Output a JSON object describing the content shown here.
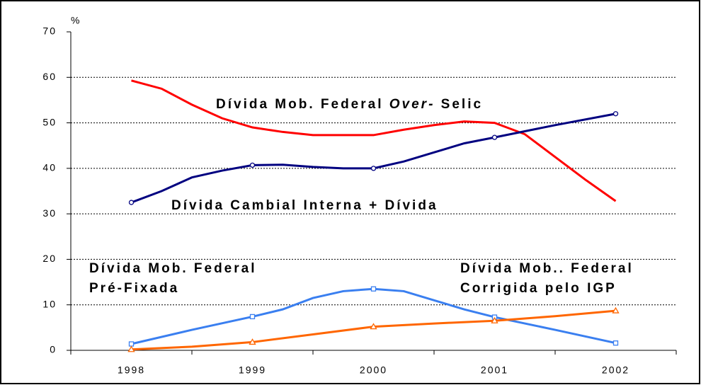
{
  "chart_data": {
    "type": "line",
    "y_unit": "%",
    "xlim": [
      1997.5,
      2002.5
    ],
    "xticks": [
      1998,
      1999,
      2000,
      2001,
      2002
    ],
    "ylim": [
      0,
      70
    ],
    "yticks": [
      0,
      10,
      20,
      30,
      40,
      50,
      60,
      70
    ],
    "grid": true,
    "annotations": [
      [
        "Dívida Mob. Federal ",
        "Over-",
        " Selic"
      ],
      [
        "Dívida Cambial Interna + Dívida"
      ],
      [
        "Dívida Mob. Federal"
      ],
      [
        "Pré-Fixada"
      ],
      [
        "Dívida Mob.. Federal"
      ],
      [
        "Corrigida pelo IGP"
      ]
    ],
    "series": [
      {
        "color": "#ff0000",
        "marker": null,
        "x": [
          1998,
          1998.25,
          1998.5,
          1998.75,
          1999,
          1999.25,
          1999.5,
          1999.75,
          2000,
          2000.25,
          2000.5,
          2000.75,
          2001,
          2001.25,
          2001.5,
          2001.75,
          2002
        ],
        "values": [
          59.3,
          57.5,
          54,
          51,
          49,
          48,
          47.3,
          47.3,
          47.3,
          48.5,
          49.5,
          50.3,
          50,
          47.5,
          42.5,
          37.5,
          32.8
        ]
      },
      {
        "color": "#000080",
        "marker": "circle",
        "x": [
          1998,
          1998.25,
          1998.5,
          1998.75,
          1999,
          1999.25,
          1999.5,
          1999.75,
          2000,
          2000.25,
          2000.5,
          2000.75,
          2001,
          2001.5,
          2002
        ],
        "values": [
          32.5,
          35,
          38,
          39.5,
          40.7,
          40.8,
          40.3,
          40,
          40,
          41.5,
          43.5,
          45.5,
          46.8,
          49.5,
          52
        ]
      },
      {
        "color": "#3a7ff0",
        "marker": "square",
        "x": [
          1998,
          1998.5,
          1999,
          1999.25,
          1999.5,
          1999.75,
          2000,
          2000.25,
          2000.5,
          2000.75,
          2001,
          2001.5,
          2002
        ],
        "values": [
          1.4,
          4.5,
          7.4,
          9,
          11.5,
          13,
          13.5,
          13,
          11,
          9,
          7.3,
          4.5,
          1.6
        ]
      },
      {
        "color": "#ff6600",
        "marker": "triangle",
        "x": [
          1998,
          1998.5,
          1999,
          1999.5,
          2000,
          2000.5,
          2001,
          2001.5,
          2002
        ],
        "values": [
          0.2,
          0.8,
          1.8,
          3.5,
          5.2,
          5.9,
          6.5,
          7.5,
          8.7
        ]
      }
    ]
  }
}
